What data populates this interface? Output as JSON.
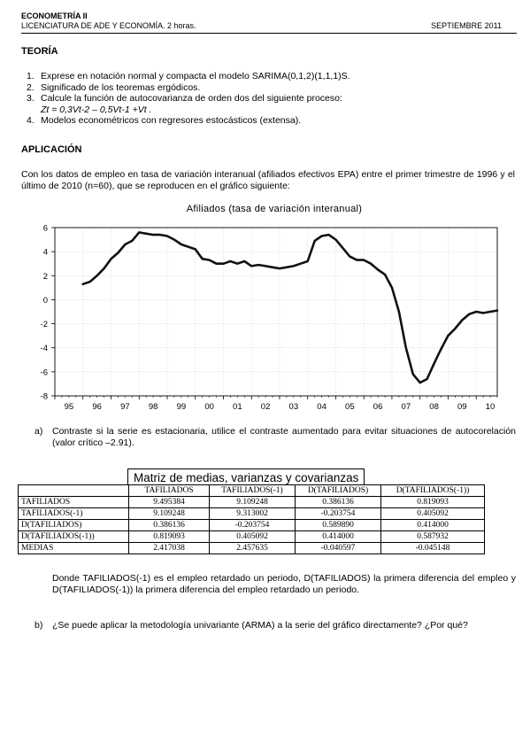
{
  "header": {
    "course": "ECONOMETRÍA II",
    "program": "LICENCIATURA DE ADE Y ECONOMÍA.  2 horas.",
    "date": "SEPTIEMBRE 2011"
  },
  "theory": {
    "heading": "TEORÍA",
    "items": [
      {
        "num": "1.",
        "text": "Exprese en notación normal y compacta el modelo SARIMA(0,1,2)(1,1,1)S."
      },
      {
        "num": "2.",
        "text": "Significado de los teoremas ergódicos."
      },
      {
        "num": "3.",
        "text": "Calcule la función de autocovarianza de orden dos del siguiente proceso:"
      },
      {
        "num": "4.",
        "text": "Modelos econométricos con regresores estocásticos (extensa)."
      }
    ],
    "equation": "Zt = 0,3Vt-2 – 0,5Vt-1 +Vt ."
  },
  "application": {
    "heading": "APLICACIÓN",
    "intro": "Con los datos de empleo en tasa de variación interanual (afiliados efectivos EPA) entre el primer trimestre de 1996 y el último de 2010 (n=60), que se reproducen en el gráfico siguiente:",
    "question_a_label": "a)",
    "question_a": "Contraste si la serie es estacionaria, utilice el contraste aumentado para evitar situaciones de autocorelación (valor crítico –2.91).",
    "matrix_title": "Matriz de medias, varianzas y covarianzas",
    "matrix_columns": [
      "",
      "TAFILIADOS",
      "TAFILIADOS(-1)",
      "D(TAFILIADOS)",
      "D(TAFILIADOS(-1))"
    ],
    "matrix_rows": [
      [
        "TAFILIADOS",
        "9.495384",
        "9.109248",
        "0.386136",
        "0.819093"
      ],
      [
        "TAFILIADOS(-1)",
        "9.109248",
        "9.313002",
        "-0.203754",
        "0.405092"
      ],
      [
        "D(TAFILIADOS)",
        "0.386136",
        "-0.203754",
        "0.589890",
        "0.414000"
      ],
      [
        "D(TAFILIADOS(-1))",
        "0.819093",
        "0.405092",
        "0.414000",
        "0.587932"
      ],
      [
        "MEDIAS",
        "2.417038",
        "2.457635",
        "-0.040597",
        "-0.045148"
      ]
    ],
    "note": "Donde TAFILIADOS(-1) es el empleo retardado un periodo, D(TAFILIADOS) la primera diferencia del empleo y D(TAFILIADOS(-1)) la primera diferencia del empleo retardado un periodo.",
    "question_b_label": "b)",
    "question_b": "¿Se puede aplicar la metodología univariante (ARMA) a la serie del gráfico directamente? ¿Por qué?"
  },
  "chart_data": {
    "type": "line",
    "title": "Afiliados (tasa de variación interanual)",
    "xlabel": "",
    "ylabel": "",
    "x_range": [
      1995,
      2010.75
    ],
    "ylim": [
      -8,
      6
    ],
    "yticks": [
      -8,
      -6,
      -4,
      -2,
      0,
      2,
      4,
      6
    ],
    "xtick_labels": [
      "95",
      "96",
      "97",
      "98",
      "99",
      "00",
      "01",
      "02",
      "03",
      "04",
      "05",
      "06",
      "07",
      "08",
      "09",
      "10"
    ],
    "grid": true,
    "line_color": "#111111",
    "x": [
      1996.0,
      1996.25,
      1996.5,
      1996.75,
      1997.0,
      1997.25,
      1997.5,
      1997.75,
      1998.0,
      1998.25,
      1998.5,
      1998.75,
      1999.0,
      1999.25,
      1999.5,
      1999.75,
      2000.0,
      2000.25,
      2000.5,
      2000.75,
      2001.0,
      2001.25,
      2001.5,
      2001.75,
      2002.0,
      2002.25,
      2002.5,
      2002.75,
      2003.0,
      2003.25,
      2003.5,
      2003.75,
      2004.0,
      2004.25,
      2004.5,
      2004.75,
      2005.0,
      2005.25,
      2005.5,
      2005.75,
      2006.0,
      2006.25,
      2006.5,
      2006.75,
      2007.0,
      2007.25,
      2007.5,
      2007.75,
      2008.0,
      2008.25,
      2008.5,
      2008.75,
      2009.0,
      2009.25,
      2009.5,
      2009.75,
      2010.0,
      2010.25,
      2010.5,
      2010.75
    ],
    "y": [
      1.3,
      1.5,
      2.0,
      2.6,
      3.4,
      3.9,
      4.6,
      4.9,
      5.6,
      5.5,
      5.4,
      5.4,
      5.3,
      5.0,
      4.6,
      4.4,
      4.2,
      3.4,
      3.3,
      3.0,
      3.0,
      3.2,
      3.0,
      3.2,
      2.8,
      2.9,
      2.8,
      2.7,
      2.6,
      2.7,
      2.8,
      3.0,
      3.2,
      4.9,
      5.3,
      5.4,
      5.0,
      4.3,
      3.6,
      3.3,
      3.3,
      3.0,
      2.5,
      2.1,
      1.0,
      -1.0,
      -4.0,
      -6.2,
      -6.9,
      -6.6,
      -5.3,
      -4.1,
      -3.0,
      -2.4,
      -1.7,
      -1.2,
      -1.0,
      -1.1,
      -1.0,
      -0.9
    ]
  }
}
